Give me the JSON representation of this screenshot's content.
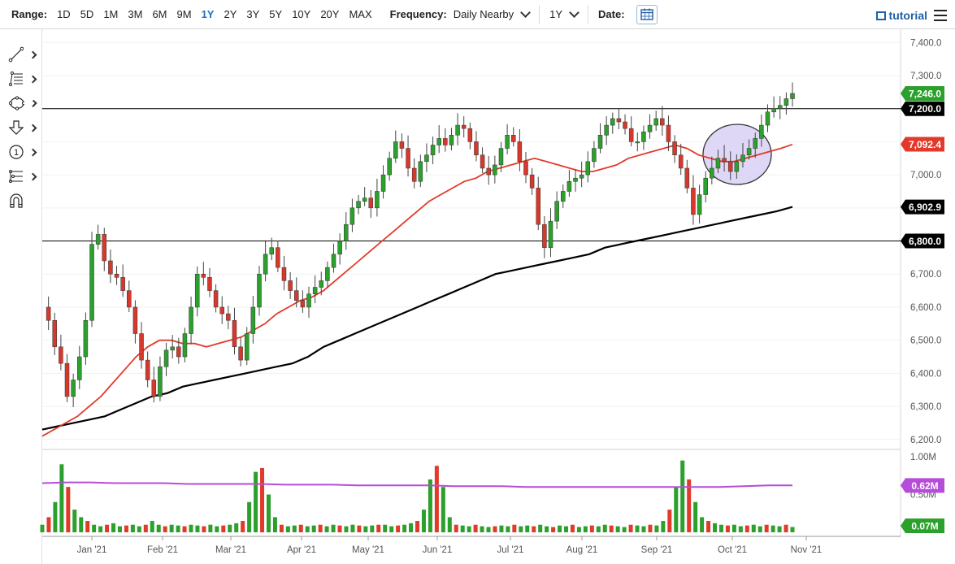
{
  "toolbar": {
    "range_label": "Range:",
    "ranges": [
      "1D",
      "5D",
      "1M",
      "3M",
      "6M",
      "9M",
      "1Y",
      "2Y",
      "3Y",
      "5Y",
      "10Y",
      "20Y",
      "MAX"
    ],
    "active_range": "1Y",
    "frequency_label": "Frequency:",
    "frequency_value": "Daily Nearby",
    "period_value": "1Y",
    "date_label": "Date:",
    "tutorial_label": "tutorial"
  },
  "sidebar": {
    "tools": [
      "line-tool-icon",
      "fibonacci-tool-icon",
      "shape-tool-icon",
      "arrow-tool-icon",
      "annotation-tool-icon",
      "pitchfork-tool-icon",
      "magnet-icon"
    ],
    "annotation_number": "1"
  },
  "chart_data": [
    {
      "type": "candlestick",
      "title": "",
      "x_labels": [
        "Jan '21",
        "Feb '21",
        "Mar '21",
        "Apr '21",
        "May '21",
        "Jun '21",
        "Jul '21",
        "Aug '21",
        "Sep '21",
        "Oct '21",
        "Nov '21"
      ],
      "y_ticks": [
        "7,400.0",
        "7,300.0",
        "7,200.0",
        "7,100.0",
        "7,000.0",
        "6,900.0",
        "6,800.0",
        "6,700.0",
        "6,600.0",
        "6,500.0",
        "6,400.0",
        "6,300.0",
        "6,200.0"
      ],
      "ylim": [
        6170,
        7440
      ],
      "horizontal_lines": [
        7200,
        6800
      ],
      "last_price_label": "7,246.0",
      "level_labels": [
        "7,200.0",
        "6,800.0"
      ],
      "ma_fast_label": "7,092.4",
      "ma_slow_label": "6,902.9",
      "colors": {
        "up": "#2ca02c",
        "down": "#d6382c",
        "ma_fast": "#e23a2a",
        "ma_slow": "#000000",
        "circle_fill": "#d8d0f4",
        "level_line": "#000000"
      },
      "price_path": [
        6600,
        6560,
        6480,
        6430,
        6330,
        6380,
        6450,
        6560,
        6790,
        6820,
        6740,
        6700,
        6690,
        6650,
        6600,
        6520,
        6440,
        6380,
        6330,
        6420,
        6470,
        6480,
        6450,
        6520,
        6600,
        6700,
        6690,
        6650,
        6600,
        6580,
        6560,
        6480,
        6440,
        6520,
        6600,
        6700,
        6760,
        6780,
        6720,
        6680,
        6650,
        6620,
        6600,
        6640,
        6660,
        6680,
        6720,
        6760,
        6800,
        6850,
        6900,
        6920,
        6930,
        6900,
        6950,
        7000,
        7050,
        7100,
        7080,
        7020,
        6980,
        7040,
        7060,
        7090,
        7110,
        7090,
        7120,
        7150,
        7140,
        7100,
        7060,
        7020,
        7000,
        7030,
        7080,
        7120,
        7100,
        7040,
        7000,
        6960,
        6850,
        6780,
        6860,
        6920,
        6950,
        6980,
        6990,
        7000,
        7040,
        7080,
        7120,
        7150,
        7170,
        7160,
        7140,
        7100,
        7100,
        7130,
        7150,
        7170,
        7150,
        7100,
        7060,
        7020,
        6960,
        6880,
        6940,
        6990,
        7020,
        7050,
        7040,
        7010,
        7040,
        7060,
        7080,
        7110,
        7150,
        7190,
        7200,
        7210,
        7230,
        7246
      ],
      "ma_fast_path": [
        6210,
        6230,
        6250,
        6270,
        6300,
        6330,
        6370,
        6410,
        6450,
        6480,
        6500,
        6500,
        6490,
        6490,
        6480,
        6490,
        6500,
        6510,
        6530,
        6550,
        6580,
        6600,
        6620,
        6630,
        6650,
        6680,
        6710,
        6740,
        6770,
        6800,
        6830,
        6860,
        6890,
        6920,
        6940,
        6960,
        6980,
        6990,
        7010,
        7020,
        7030,
        7040,
        7050,
        7040,
        7030,
        7020,
        7010,
        7010,
        7020,
        7030,
        7050,
        7060,
        7070,
        7080,
        7090,
        7080,
        7060,
        7050,
        7040,
        7040,
        7050,
        7060,
        7070,
        7080,
        7092
      ],
      "ma_slow_path": [
        6230,
        6240,
        6250,
        6260,
        6270,
        6290,
        6310,
        6330,
        6340,
        6360,
        6370,
        6380,
        6390,
        6400,
        6410,
        6420,
        6430,
        6450,
        6480,
        6500,
        6520,
        6540,
        6560,
        6580,
        6600,
        6620,
        6640,
        6660,
        6680,
        6700,
        6710,
        6720,
        6730,
        6740,
        6750,
        6760,
        6780,
        6790,
        6800,
        6810,
        6820,
        6830,
        6840,
        6850,
        6860,
        6870,
        6880,
        6890,
        6902.9
      ],
      "annotation": "highlighted consolidation region"
    },
    {
      "type": "bar",
      "series_name": "volume",
      "y_ticks": [
        "1.00M",
        "0.50M"
      ],
      "volume_label": "0.07M",
      "volume_avg_label": "0.62M",
      "colors": {
        "up": "#2ca02c",
        "down": "#e23a2a",
        "average": "#b64dd8"
      },
      "volume_path": [
        0.1,
        0.2,
        0.4,
        0.9,
        0.6,
        0.3,
        0.2,
        0.15,
        0.1,
        0.08,
        0.1,
        0.12,
        0.08,
        0.09,
        0.1,
        0.08,
        0.1,
        0.15,
        0.1,
        0.08,
        0.1,
        0.09,
        0.08,
        0.1,
        0.09,
        0.08,
        0.1,
        0.08,
        0.09,
        0.1,
        0.12,
        0.15,
        0.4,
        0.8,
        0.85,
        0.5,
        0.2,
        0.1,
        0.08,
        0.09,
        0.1,
        0.08,
        0.09,
        0.1,
        0.08,
        0.1,
        0.09,
        0.08,
        0.1,
        0.09,
        0.08,
        0.09,
        0.1,
        0.1,
        0.08,
        0.09,
        0.1,
        0.12,
        0.15,
        0.3,
        0.7,
        0.88,
        0.6,
        0.2,
        0.1,
        0.09,
        0.08,
        0.1,
        0.08,
        0.07,
        0.08,
        0.09,
        0.08,
        0.1,
        0.08,
        0.09,
        0.08,
        0.1,
        0.08,
        0.07,
        0.09,
        0.08,
        0.1,
        0.07,
        0.08,
        0.09,
        0.08,
        0.1,
        0.09,
        0.08,
        0.07,
        0.1,
        0.09,
        0.08,
        0.1,
        0.09,
        0.15,
        0.3,
        0.6,
        0.95,
        0.7,
        0.4,
        0.2,
        0.15,
        0.12,
        0.1,
        0.09,
        0.1,
        0.08,
        0.09,
        0.1,
        0.08,
        0.1,
        0.09,
        0.08,
        0.1,
        0.07
      ],
      "avg_path": [
        0.65,
        0.66,
        0.66,
        0.65,
        0.65,
        0.65,
        0.64,
        0.64,
        0.64,
        0.64,
        0.63,
        0.63,
        0.63,
        0.62,
        0.62,
        0.62,
        0.62,
        0.61,
        0.61,
        0.61,
        0.6,
        0.6,
        0.6,
        0.6,
        0.6,
        0.6,
        0.6,
        0.6,
        0.6,
        0.61,
        0.62,
        0.62
      ]
    }
  ]
}
